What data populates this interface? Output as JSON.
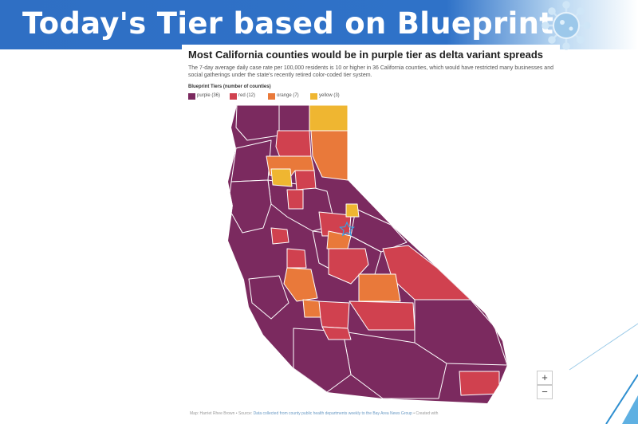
{
  "banner": {
    "title": "Today's Tier based on Blueprint"
  },
  "map_header": {
    "headline": "Most California counties would be in purple tier as delta variant spreads",
    "description": "The 7-day average daily case rate per 100,000 residents is 10 or higher in 36 California counties, which would have restricted many businesses and social gatherings under the state's recently retired color-coded tier system."
  },
  "legend": {
    "title": "Blueprint Tiers (number of counties)",
    "items": [
      {
        "label": "purple (36)",
        "color": "#7b2a5f"
      },
      {
        "label": "red (12)",
        "color": "#d0414f"
      },
      {
        "label": "orange (7)",
        "color": "#e9793a"
      },
      {
        "label": "yellow (3)",
        "color": "#efb631"
      }
    ]
  },
  "map": {
    "marker_icon": "star-icon",
    "border_color": "#ffffff"
  },
  "controls": {
    "zoom_in": "+",
    "zoom_out": "−"
  },
  "credit": {
    "text": "Map: Harriet Rhee Brown • Source: ",
    "source_link": "Data collected from county public health departments weekly to the Bay Area News Group",
    "suffix": " • Created with"
  }
}
